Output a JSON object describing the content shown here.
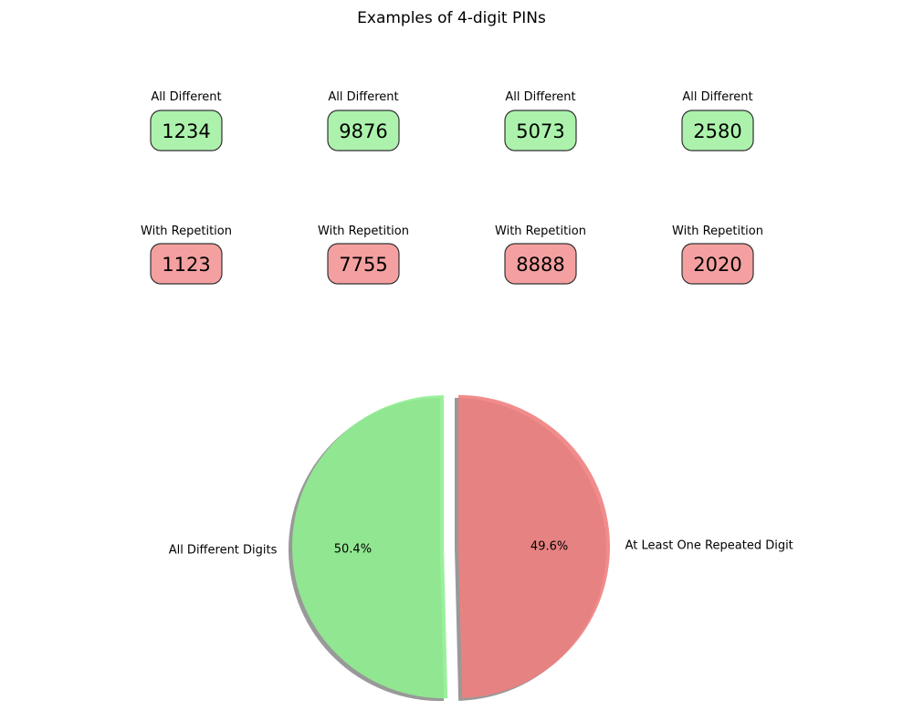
{
  "title": "Examples of 4-digit PINs",
  "pin_rows": [
    {
      "label": "All Different",
      "color": "#90ee90",
      "pins": [
        "1234",
        "9876",
        "5073",
        "2580"
      ]
    },
    {
      "label": "With Repetition",
      "color": "#f08080",
      "pins": [
        "1123",
        "7755",
        "8888",
        "2020"
      ]
    }
  ],
  "chart_data": {
    "type": "pie",
    "title": "",
    "slices": [
      {
        "label": "All Different Digits",
        "value": 50.4,
        "pct_label": "50.4%",
        "color": "#90ee90",
        "exploded": true
      },
      {
        "label": "At Least One Repeated Digit",
        "value": 49.6,
        "pct_label": "49.6%",
        "color": "#f08080",
        "exploded": true
      }
    ],
    "start_angle": "top (90°), counter-clockwise",
    "shadow": true
  }
}
